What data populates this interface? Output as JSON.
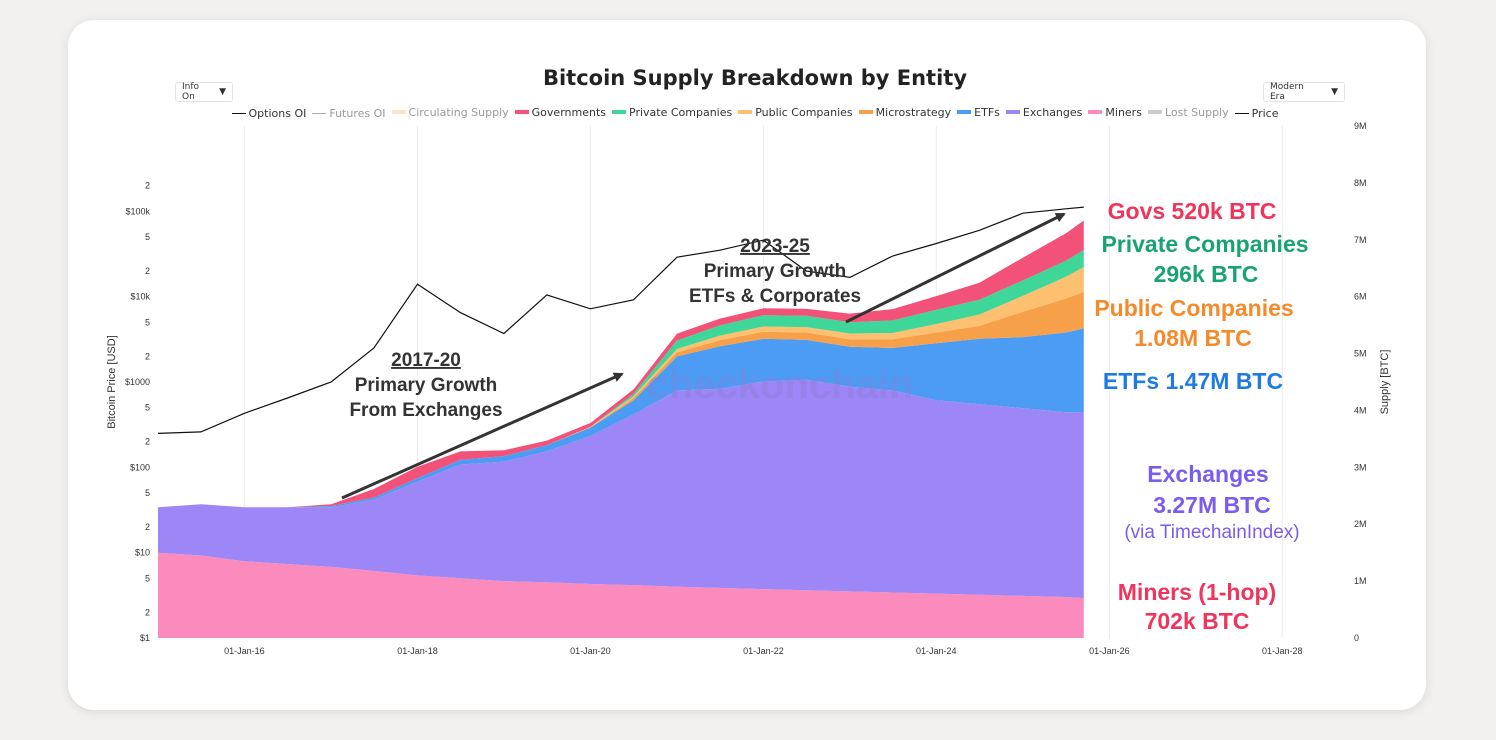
{
  "controls": {
    "info_select": "Info On",
    "era_select": "Modern Era"
  },
  "watermark": "checkonchain",
  "annotations": {
    "growth_2017": {
      "year": "2017-20",
      "line1": "Primary Growth",
      "line2": "From Exchanges"
    },
    "growth_2023": {
      "year": "2023-25",
      "line1": "Primary Growth",
      "line2": "ETFs & Corporates"
    },
    "govs": "Govs 520k BTC",
    "private_1": "Private Companies",
    "private_2": "296k BTC",
    "public_1": "Public Companies",
    "public_2": "1.08M BTC",
    "etfs": "ETFs 1.47M BTC",
    "exchanges_1": "Exchanges",
    "exchanges_2": "3.27M BTC",
    "exchanges_3": "(via TimechainIndex)",
    "miners_1": "Miners (1-hop)",
    "miners_2": "702k BTC"
  },
  "colors": {
    "price": "#111111",
    "governments": "#f25277",
    "private_companies": "#3fd69a",
    "public_companies": "#fcc070",
    "microstrategy": "#f7a04a",
    "etfs": "#4c9cf4",
    "exchanges": "#9d86f5",
    "miners": "#fb8bbd",
    "govs_text": "#f0345c",
    "private_text": "#1aa372",
    "public_text": "#f58a2a",
    "etfs_text": "#1e7be3",
    "exchanges_text": "#7a5cf0",
    "miners_text": "#f0345c"
  },
  "chart_data": {
    "type": "area",
    "title": "Bitcoin Supply Breakdown by Entity",
    "ylabel_left": "Bitcoin Price [USD]",
    "ylabel_right": "Supply [BTC]",
    "left_axis_scale": "log",
    "ylim_left": [
      1,
      1000000
    ],
    "ylim_right": [
      0,
      9000000
    ],
    "xlim": [
      "2015-01-01",
      "2028-09-01"
    ],
    "x_ticks": [
      "01-Jan-16",
      "01-Jan-18",
      "01-Jan-20",
      "01-Jan-22",
      "01-Jan-24",
      "01-Jan-26",
      "01-Jan-28"
    ],
    "y_ticks_left": [
      "$1",
      "2",
      "5",
      "$10",
      "2",
      "5",
      "$100",
      "2",
      "5",
      "$1000",
      "2",
      "5",
      "$10k",
      "2",
      "5",
      "$100k",
      "2"
    ],
    "y_ticks_right": [
      "0",
      "1M",
      "2M",
      "3M",
      "4M",
      "5M",
      "6M",
      "7M",
      "8M",
      "9M"
    ],
    "legend": [
      {
        "name": "Options OI",
        "type": "line",
        "color": "#111111",
        "muted": false
      },
      {
        "name": "Futures OI",
        "type": "line",
        "color": "#aaaaaa",
        "muted": true
      },
      {
        "name": "Circulating Supply",
        "type": "area",
        "color": "#fde3cd",
        "muted": true
      },
      {
        "name": "Governments",
        "type": "area",
        "color": "#f25277",
        "muted": false
      },
      {
        "name": "Private Companies",
        "type": "area",
        "color": "#3fd69a",
        "muted": false
      },
      {
        "name": "Public Companies",
        "type": "area",
        "color": "#fcc070",
        "muted": false
      },
      {
        "name": "Microstrategy",
        "type": "area",
        "color": "#f7a04a",
        "muted": false
      },
      {
        "name": "ETFs",
        "type": "area",
        "color": "#4c9cf4",
        "muted": false
      },
      {
        "name": "Exchanges",
        "type": "area",
        "color": "#9d86f5",
        "muted": false
      },
      {
        "name": "Miners",
        "type": "area",
        "color": "#fb8bbd",
        "muted": false
      },
      {
        "name": "Lost Supply",
        "type": "area",
        "color": "#cccccc",
        "muted": true
      },
      {
        "name": "Price",
        "type": "line",
        "color": "#111111",
        "muted": false
      }
    ],
    "dates": [
      "2015-01-01",
      "2015-07-01",
      "2016-01-01",
      "2016-07-01",
      "2017-01-01",
      "2017-07-01",
      "2018-01-01",
      "2018-07-01",
      "2019-01-01",
      "2019-07-01",
      "2020-01-01",
      "2020-07-01",
      "2021-01-01",
      "2021-07-01",
      "2022-01-01",
      "2022-07-01",
      "2023-01-01",
      "2023-07-01",
      "2024-01-01",
      "2024-07-01",
      "2025-01-01",
      "2025-07-01",
      "2025-09-15"
    ],
    "price_usd": [
      250,
      260,
      430,
      650,
      1000,
      2500,
      14000,
      6500,
      3700,
      10500,
      7200,
      9200,
      29000,
      35000,
      46000,
      20000,
      16800,
      30000,
      42000,
      60000,
      95000,
      107000,
      112000
    ],
    "series": [
      {
        "name": "Miners",
        "values": [
          1500000,
          1450000,
          1350000,
          1300000,
          1250000,
          1180000,
          1100000,
          1050000,
          1000000,
          980000,
          950000,
          930000,
          900000,
          880000,
          860000,
          840000,
          820000,
          800000,
          780000,
          760000,
          740000,
          720000,
          702000
        ]
      },
      {
        "name": "Exchanges",
        "values": [
          800000,
          900000,
          950000,
          1000000,
          1050000,
          1250000,
          1650000,
          2000000,
          2100000,
          2300000,
          2600000,
          3000000,
          3450000,
          3500000,
          3650000,
          3700000,
          3600000,
          3550000,
          3400000,
          3350000,
          3300000,
          3250000,
          3270000
        ]
      },
      {
        "name": "ETFs",
        "values": [
          0,
          0,
          0,
          0,
          20000,
          40000,
          60000,
          80000,
          100000,
          110000,
          150000,
          250000,
          600000,
          750000,
          750000,
          700000,
          700000,
          750000,
          1000000,
          1150000,
          1250000,
          1400000,
          1470000
        ]
      },
      {
        "name": "Microstrategy",
        "values": [
          0,
          0,
          0,
          0,
          0,
          0,
          0,
          0,
          0,
          0,
          0,
          40000,
          70000,
          105000,
          125000,
          130000,
          132000,
          152000,
          190000,
          226000,
          446000,
          597000,
          640000
        ]
      },
      {
        "name": "Public Companies",
        "values": [
          0,
          0,
          0,
          0,
          0,
          0,
          0,
          0,
          0,
          0,
          10000,
          30000,
          60000,
          80000,
          90000,
          95000,
          100000,
          110000,
          150000,
          200000,
          280000,
          380000,
          440000
        ]
      },
      {
        "name": "Private Companies",
        "values": [
          0,
          0,
          0,
          0,
          0,
          0,
          0,
          0,
          0,
          0,
          0,
          40000,
          150000,
          180000,
          200000,
          200000,
          200000,
          220000,
          250000,
          260000,
          270000,
          285000,
          296000
        ]
      },
      {
        "name": "Governments",
        "values": [
          0,
          0,
          0,
          0,
          30000,
          150000,
          200000,
          150000,
          100000,
          80000,
          70000,
          80000,
          120000,
          120000,
          120000,
          120000,
          150000,
          200000,
          240000,
          300000,
          400000,
          480000,
          520000
        ]
      }
    ]
  }
}
